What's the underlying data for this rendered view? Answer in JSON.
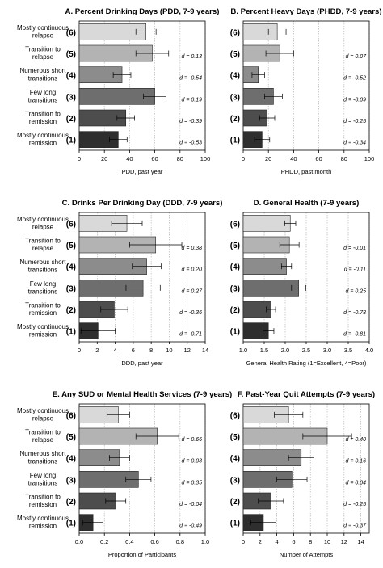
{
  "groups": [
    {
      "code": "(6)",
      "label": [
        "Mostly continuous",
        "relapse"
      ]
    },
    {
      "code": "(5)",
      "label": [
        "Transition to",
        "relapse"
      ]
    },
    {
      "code": "(4)",
      "label": [
        "Numerous short",
        "transitions"
      ]
    },
    {
      "code": "(3)",
      "label": [
        "Few long",
        "transitions"
      ]
    },
    {
      "code": "(2)",
      "label": [
        "Transition to",
        "remission"
      ]
    },
    {
      "code": "(1)",
      "label": [
        "Mostly continuous",
        "remission"
      ]
    }
  ],
  "bar_colors": [
    "#d9d9d9",
    "#b3b3b3",
    "#8c8c8c",
    "#6e6e6e",
    "#4d4d4d",
    "#2e2e2e"
  ],
  "chart_data": [
    {
      "type": "bar",
      "orientation": "horizontal",
      "title": "A. Percent Drinking Days (PDD, 7-9 years)",
      "xlabel": "PDD, past year",
      "xlim": [
        0,
        100
      ],
      "xticks": [
        0,
        20,
        40,
        60,
        80,
        100
      ],
      "tick_labels": [
        "0",
        "20",
        "40",
        "60",
        "80",
        "100"
      ],
      "values": [
        53,
        58,
        34,
        60,
        37,
        31
      ],
      "error": [
        8,
        13,
        7,
        9,
        7,
        7
      ],
      "d_values": [
        "",
        "d = 0.13",
        "d = -0.54",
        "d = 0.19",
        "d = -0.39",
        "d = -0.53"
      ]
    },
    {
      "type": "bar",
      "orientation": "horizontal",
      "title": "B. Percent Heavy Days (PHDD, 7-9 years)",
      "xlabel": "PHDD, past month",
      "xlim": [
        0,
        100
      ],
      "xticks": [
        0,
        20,
        40,
        60,
        80,
        100
      ],
      "tick_labels": [
        "0",
        "20",
        "40",
        "60",
        "80",
        "100"
      ],
      "values": [
        27,
        29,
        12,
        24,
        19,
        15
      ],
      "error": [
        7,
        11,
        5,
        7,
        6,
        6
      ],
      "d_values": [
        "",
        "d = 0.07",
        "d = -0.52",
        "d = -0.09",
        "d = -0.25",
        "d = -0.34"
      ]
    },
    {
      "type": "bar",
      "orientation": "horizontal",
      "title": "C. Drinks Per Drinking Day (DDD, 7-9 years)",
      "xlabel": "DDD, past year",
      "xlim": [
        0,
        14
      ],
      "xticks": [
        0,
        2,
        4,
        6,
        8,
        10,
        12,
        14
      ],
      "tick_labels": [
        "0",
        "2",
        "4",
        "6",
        "8",
        "10",
        "12",
        "14"
      ],
      "values": [
        5.3,
        8.5,
        7.5,
        7.1,
        3.9,
        2.1
      ],
      "error": [
        1.7,
        2.9,
        1.6,
        1.9,
        1.5,
        1.9
      ],
      "d_values": [
        "",
        "d = 0.38",
        "d = 0.20",
        "d = 0.27",
        "d = -0.36",
        "d = -0.71"
      ]
    },
    {
      "type": "bar",
      "orientation": "horizontal",
      "title": "D. General Health (7-9 years)",
      "xlabel": "General Health Rating (1=Excellent, 4=Poor)",
      "xlim": [
        1,
        4
      ],
      "xticks": [
        1.0,
        1.5,
        2.0,
        2.5,
        3.0,
        3.5,
        4.0
      ],
      "tick_labels": [
        "1.0",
        "1.5",
        "2.0",
        "2.5",
        "3.0",
        "3.5",
        "4.0"
      ],
      "values": [
        2.12,
        2.1,
        2.03,
        2.32,
        1.66,
        1.6
      ],
      "error": [
        0.13,
        0.23,
        0.12,
        0.17,
        0.11,
        0.13
      ],
      "d_values": [
        "",
        "d = -0.01",
        "d = -0.11",
        "d = 0.25",
        "d = -0.78",
        "d = -0.81"
      ]
    },
    {
      "type": "bar",
      "orientation": "horizontal",
      "title": "E. Any SUD or Mental Health Services (7-9 years)",
      "xlabel": "Proportion of Participants",
      "xlim": [
        0,
        1
      ],
      "xticks": [
        0,
        0.2,
        0.4,
        0.6,
        0.8,
        1.0
      ],
      "tick_labels": [
        "0.0",
        "0.2",
        "0.4",
        "0.6",
        "0.8",
        "1.0"
      ],
      "values": [
        0.31,
        0.62,
        0.32,
        0.47,
        0.29,
        0.11
      ],
      "error": [
        0.09,
        0.17,
        0.08,
        0.1,
        0.08,
        0.08
      ],
      "d_values": [
        "",
        "d = 0.66",
        "d = 0.03",
        "d = 0.35",
        "d = -0.04",
        "d = -0.49"
      ]
    },
    {
      "type": "bar",
      "orientation": "horizontal",
      "title": "F. Past-Year Quit Attempts (7-9 years)",
      "xlabel": "Number of Attempts",
      "xlim": [
        0,
        15
      ],
      "xticks": [
        0,
        2,
        4,
        6,
        8,
        10,
        12,
        14
      ],
      "tick_labels": [
        "0",
        "2",
        "4",
        "6",
        "8",
        "10",
        "12",
        "14"
      ],
      "values": [
        5.4,
        10.0,
        6.9,
        5.8,
        3.3,
        2.4
      ],
      "error": [
        1.7,
        2.9,
        1.5,
        1.8,
        1.5,
        1.5
      ],
      "d_values": [
        "",
        "d = 0.40",
        "d = 0.16",
        "d = 0.04",
        "d = -0.25",
        "d = -0.37"
      ]
    }
  ]
}
